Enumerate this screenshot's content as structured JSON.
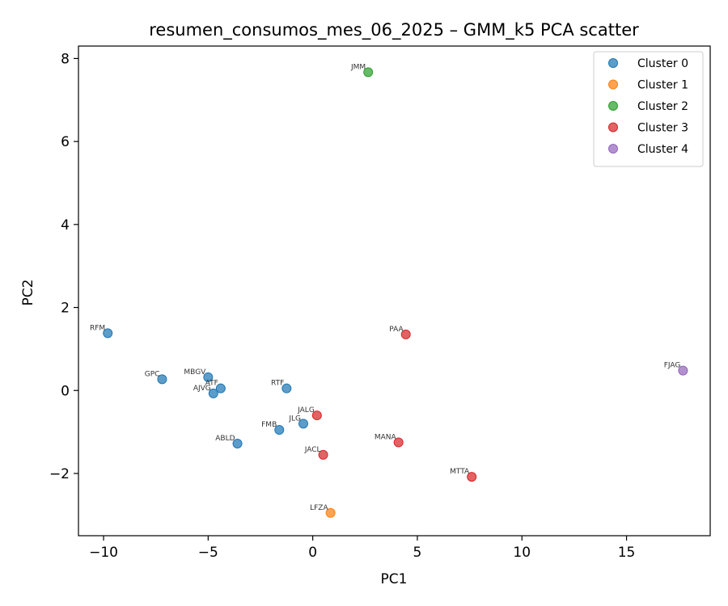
{
  "chart_data": {
    "type": "scatter",
    "title": "resumen_consumos_mes_06_2025 – GMM_k5 PCA scatter",
    "xlabel": "PC1",
    "ylabel": "PC2",
    "xlim": [
      -11.2,
      19.0
    ],
    "ylim": [
      -3.5,
      8.3
    ],
    "xticks": [
      -10,
      -5,
      0,
      5,
      10,
      15
    ],
    "yticks": [
      -2,
      0,
      2,
      4,
      6,
      8
    ],
    "xtick_labels": [
      "−10",
      "−5",
      "0",
      "5",
      "10",
      "15"
    ],
    "ytick_labels": [
      "−2",
      "0",
      "2",
      "4",
      "6",
      "8"
    ],
    "grid": false,
    "legend_position": "top-right",
    "series": [
      {
        "name": "Cluster 0",
        "color": "#1f77b4",
        "points": [
          {
            "label": "RFM",
            "x": -9.8,
            "y": 1.38
          },
          {
            "label": "GPC",
            "x": -7.2,
            "y": 0.27
          },
          {
            "label": "MBGV",
            "x": -5.0,
            "y": 0.32
          },
          {
            "label": "ATF",
            "x": -4.4,
            "y": 0.05
          },
          {
            "label": "AJVG",
            "x": -4.75,
            "y": -0.07
          },
          {
            "label": "ABLD",
            "x": -3.6,
            "y": -1.28
          },
          {
            "label": "FMB",
            "x": -1.6,
            "y": -0.95
          },
          {
            "label": "JLG",
            "x": -0.45,
            "y": -0.8
          },
          {
            "label": "RTF",
            "x": -1.25,
            "y": 0.05
          }
        ]
      },
      {
        "name": "Cluster 1",
        "color": "#ff7f0e",
        "points": [
          {
            "label": "LFZA",
            "x": 0.85,
            "y": -2.95
          }
        ]
      },
      {
        "name": "Cluster 2",
        "color": "#2ca02c",
        "points": [
          {
            "label": "JMM",
            "x": 2.65,
            "y": 7.67
          }
        ]
      },
      {
        "name": "Cluster 3",
        "color": "#d62728",
        "points": [
          {
            "label": "PAA",
            "x": 4.45,
            "y": 1.35
          },
          {
            "label": "JALG",
            "x": 0.2,
            "y": -0.6
          },
          {
            "label": "JACL",
            "x": 0.5,
            "y": -1.55
          },
          {
            "label": "MANA",
            "x": 4.1,
            "y": -1.25
          },
          {
            "label": "MTTA",
            "x": 7.6,
            "y": -2.08
          }
        ]
      },
      {
        "name": "Cluster 4",
        "color": "#9467bd",
        "points": [
          {
            "label": "FJAG",
            "x": 17.7,
            "y": 0.48
          }
        ]
      }
    ]
  }
}
